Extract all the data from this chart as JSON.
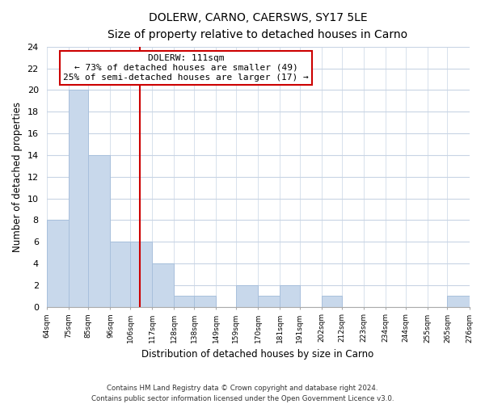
{
  "title": "DOLERW, CARNO, CAERSWS, SY17 5LE",
  "subtitle": "Size of property relative to detached houses in Carno",
  "xlabel": "Distribution of detached houses by size in Carno",
  "ylabel": "Number of detached properties",
  "bar_color": "#c8d8eb",
  "bar_edge_color": "#a8c0dc",
  "annotation_text_line1": "DOLERW: 111sqm",
  "annotation_text_line2": "← 73% of detached houses are smaller (49)",
  "annotation_text_line3": "25% of semi-detached houses are larger (17) →",
  "bins": [
    64,
    75,
    85,
    96,
    106,
    117,
    128,
    138,
    149,
    159,
    170,
    181,
    191,
    202,
    212,
    223,
    234,
    244,
    255,
    265,
    276
  ],
  "counts": [
    8,
    20,
    14,
    6,
    6,
    4,
    1,
    1,
    0,
    2,
    1,
    2,
    0,
    1,
    0,
    0,
    0,
    0,
    0,
    1
  ],
  "tick_labels": [
    "64sqm",
    "75sqm",
    "85sqm",
    "96sqm",
    "106sqm",
    "117sqm",
    "128sqm",
    "138sqm",
    "149sqm",
    "159sqm",
    "170sqm",
    "181sqm",
    "191sqm",
    "202sqm",
    "212sqm",
    "223sqm",
    "234sqm",
    "244sqm",
    "255sqm",
    "265sqm",
    "276sqm"
  ],
  "ylim": [
    0,
    24
  ],
  "yticks": [
    0,
    2,
    4,
    6,
    8,
    10,
    12,
    14,
    16,
    18,
    20,
    22,
    24
  ],
  "footer_line1": "Contains HM Land Registry data © Crown copyright and database right 2024.",
  "footer_line2": "Contains public sector information licensed under the Open Government Licence v3.0.",
  "background_color": "#ffffff",
  "grid_color": "#c8d4e4",
  "annotation_box_color": "#ffffff",
  "annotation_box_edge": "#cc0000",
  "vline_color": "#cc0000",
  "vline_x": 111
}
